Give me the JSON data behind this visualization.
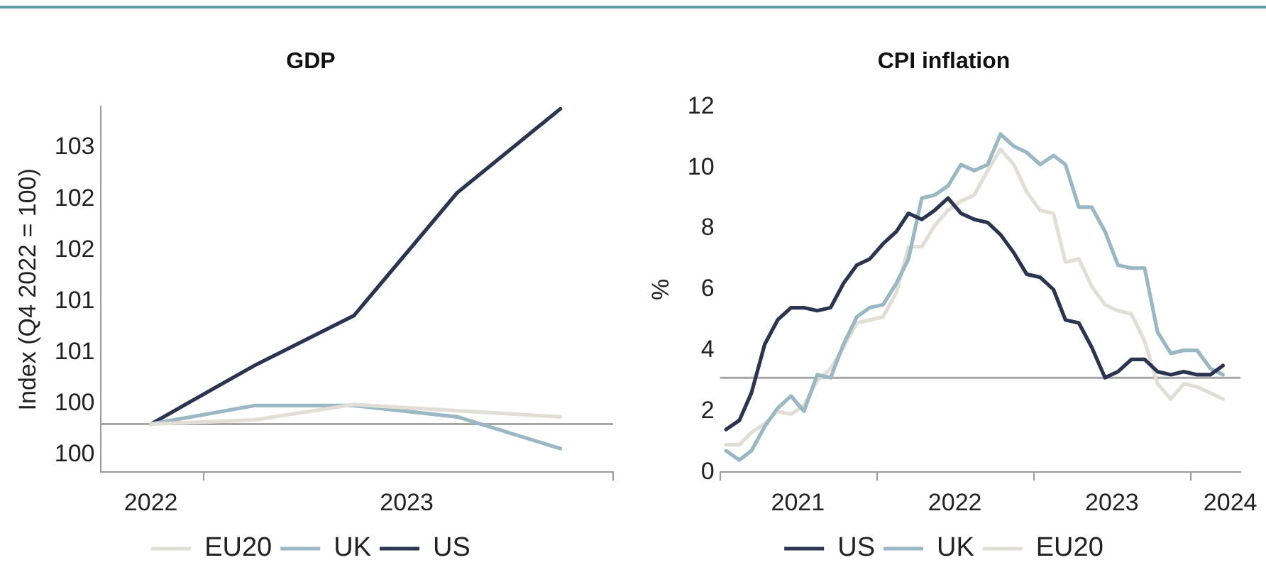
{
  "chart_data": [
    {
      "type": "line",
      "title": "GDP",
      "ylabel": "Index (Q4 2022 = 100)",
      "x": [
        "2022-11-15",
        "2023-02-15",
        "2023-05-15",
        "2023-08-15",
        "2023-11-15"
      ],
      "xlim": [
        "2022-10-01",
        "2024-01-01"
      ],
      "xticks": [
        {
          "value": "2022-11-15",
          "label": "2022"
        },
        {
          "value": "2023-01-01",
          "label": null
        },
        {
          "value": "2023-07-01",
          "label": "2023"
        },
        {
          "value": "2024-01-01",
          "label": null
        }
      ],
      "ylim": [
        99.53,
        103.1
      ],
      "yticks": [
        {
          "value": 99.7,
          "label": "100"
        },
        {
          "value": 100.2,
          "label": "100"
        },
        {
          "value": 100.7,
          "label": "101"
        },
        {
          "value": 101.2,
          "label": "101"
        },
        {
          "value": 101.7,
          "label": "102"
        },
        {
          "value": 102.2,
          "label": "102"
        },
        {
          "value": 102.7,
          "label": "103"
        }
      ],
      "series": [
        {
          "name": "EU20",
          "color": "#e0ded6",
          "values": [
            100,
            100.04,
            100.19,
            100.13,
            100.07
          ]
        },
        {
          "name": "UK",
          "color": "#9ab7c4",
          "values": [
            100,
            100.18,
            100.18,
            100.07,
            99.76
          ]
        },
        {
          "name": "US",
          "color": "#2b3550",
          "values": [
            100,
            100.57,
            101.06,
            102.26,
            103.08
          ]
        }
      ],
      "ref_lines": [
        {
          "axis": "y",
          "value": 100,
          "color": "#a6a6a6"
        }
      ],
      "legend": "bottom",
      "marker": "none"
    },
    {
      "type": "line",
      "title": "CPI inflation",
      "ylabel": "%",
      "x": [
        "2021-01-15",
        "2021-02-15",
        "2021-03-15",
        "2021-04-15",
        "2021-05-15",
        "2021-06-15",
        "2021-07-15",
        "2021-08-15",
        "2021-09-15",
        "2021-10-15",
        "2021-11-15",
        "2021-12-15",
        "2022-01-15",
        "2022-02-15",
        "2022-03-15",
        "2022-04-15",
        "2022-05-15",
        "2022-06-15",
        "2022-07-15",
        "2022-08-15",
        "2022-09-15",
        "2022-10-15",
        "2022-11-15",
        "2022-12-15",
        "2023-01-15",
        "2023-02-15",
        "2023-03-15",
        "2023-04-15",
        "2023-05-15",
        "2023-06-15",
        "2023-07-15",
        "2023-08-15",
        "2023-09-15",
        "2023-10-15",
        "2023-11-15",
        "2023-12-15",
        "2024-01-15",
        "2024-02-15",
        "2024-03-15"
      ],
      "xlim": [
        "2021-01-01",
        "2024-04-25"
      ],
      "xticks": [
        {
          "value": "2021-01-01",
          "label": null
        },
        {
          "value": "2021-07-01",
          "label": "2021"
        },
        {
          "value": "2022-01-01",
          "label": null
        },
        {
          "value": "2022-07-01",
          "label": "2022"
        },
        {
          "value": "2023-01-01",
          "label": null
        },
        {
          "value": "2023-07-01",
          "label": "2023"
        },
        {
          "value": "2024-01-01",
          "label": null
        },
        {
          "value": "2024-04-01",
          "label": "2024"
        }
      ],
      "ylim": [
        0,
        12
      ],
      "yticks": [
        0,
        2,
        4,
        6,
        8,
        10,
        12
      ],
      "series": [
        {
          "name": "US",
          "color": "#2b3550",
          "values": [
            1.4,
            1.7,
            2.6,
            4.2,
            5.0,
            5.4,
            5.4,
            5.3,
            5.4,
            6.2,
            6.8,
            7.0,
            7.5,
            7.9,
            8.5,
            8.3,
            8.6,
            9.0,
            8.5,
            8.3,
            8.2,
            7.8,
            7.2,
            6.5,
            6.4,
            6.0,
            5.0,
            4.9,
            4.1,
            3.1,
            3.3,
            3.7,
            3.7,
            3.3,
            3.2,
            3.3,
            3.2,
            3.2,
            3.5
          ]
        },
        {
          "name": "UK",
          "color": "#9ab7c4",
          "values": [
            0.7,
            0.4,
            0.7,
            1.5,
            2.1,
            2.5,
            2.0,
            3.2,
            3.1,
            4.2,
            5.1,
            5.4,
            5.5,
            6.2,
            7.0,
            9.0,
            9.1,
            9.4,
            10.1,
            9.9,
            10.1,
            11.1,
            10.7,
            10.5,
            10.1,
            10.4,
            10.1,
            8.7,
            8.7,
            7.9,
            6.8,
            6.7,
            6.7,
            4.6,
            3.9,
            4.0,
            4.0,
            3.4,
            3.2
          ]
        },
        {
          "name": "EU20",
          "color": "#e0ded6",
          "values": [
            0.9,
            0.9,
            1.3,
            1.6,
            2.0,
            1.9,
            2.2,
            3.0,
            3.4,
            4.1,
            4.9,
            5.0,
            5.1,
            5.9,
            7.4,
            7.4,
            8.1,
            8.6,
            8.9,
            9.1,
            9.9,
            10.6,
            10.1,
            9.2,
            8.6,
            8.5,
            6.9,
            7.0,
            6.1,
            5.5,
            5.3,
            5.2,
            4.3,
            2.9,
            2.4,
            2.9,
            2.8,
            2.6,
            2.4
          ]
        }
      ],
      "ref_lines": [
        {
          "axis": "y",
          "value": 3.1,
          "color": "#a6a6a6"
        }
      ],
      "legend": "bottom",
      "marker": "none"
    }
  ]
}
